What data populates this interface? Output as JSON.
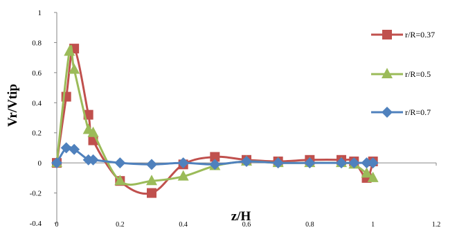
{
  "chart_data": {
    "type": "line",
    "xlabel": "z/H",
    "ylabel": "Vr/Vtip",
    "xlim": [
      0,
      1.2
    ],
    "ylim": [
      -0.4,
      1
    ],
    "xticks": [
      0,
      0.2,
      0.4,
      0.6,
      0.8,
      1,
      1.2
    ],
    "yticks": [
      -0.4,
      -0.2,
      0,
      0.2,
      0.4,
      0.6,
      0.8,
      1
    ],
    "xtick_labels": [
      "0",
      "0.2",
      "0.4",
      "0.6",
      "0.8",
      "1",
      "1.2"
    ],
    "ytick_labels": [
      "-0.4",
      "-0.2",
      "0",
      "0.2",
      "0.4",
      "0.6",
      "0.8",
      "1"
    ],
    "grid": false,
    "legend_position": "right",
    "series": [
      {
        "name": "r/R=0.37",
        "color": "#c0504d",
        "marker": "square",
        "x": [
          0,
          0.03,
          0.055,
          0.1,
          0.115,
          0.2,
          0.3,
          0.4,
          0.5,
          0.6,
          0.7,
          0.8,
          0.9,
          0.94,
          0.98,
          1.0
        ],
        "y": [
          0,
          0.44,
          0.76,
          0.32,
          0.15,
          -0.12,
          -0.2,
          -0.01,
          0.04,
          0.02,
          0.01,
          0.02,
          0.02,
          0.01,
          -0.1,
          0.01
        ]
      },
      {
        "name": "r/R=0.5",
        "color": "#9bbb59",
        "marker": "triangle",
        "x": [
          0,
          0.04,
          0.055,
          0.1,
          0.115,
          0.2,
          0.3,
          0.4,
          0.5,
          0.6,
          0.7,
          0.8,
          0.9,
          0.94,
          0.98,
          1.0
        ],
        "y": [
          0,
          0.74,
          0.62,
          0.22,
          0.2,
          -0.12,
          -0.12,
          -0.09,
          -0.02,
          0.01,
          0.0,
          0.0,
          0.0,
          -0.01,
          -0.07,
          -0.1
        ]
      },
      {
        "name": "r/R=0.7",
        "color": "#4f81bd",
        "marker": "diamond",
        "x": [
          0,
          0.03,
          0.055,
          0.1,
          0.115,
          0.2,
          0.3,
          0.4,
          0.5,
          0.6,
          0.7,
          0.8,
          0.9,
          0.94,
          0.98,
          1.0
        ],
        "y": [
          0,
          0.1,
          0.09,
          0.02,
          0.02,
          0.0,
          -0.01,
          0.0,
          -0.01,
          0.01,
          0.0,
          0.0,
          0.0,
          0.0,
          0.0,
          0.0
        ]
      }
    ]
  }
}
